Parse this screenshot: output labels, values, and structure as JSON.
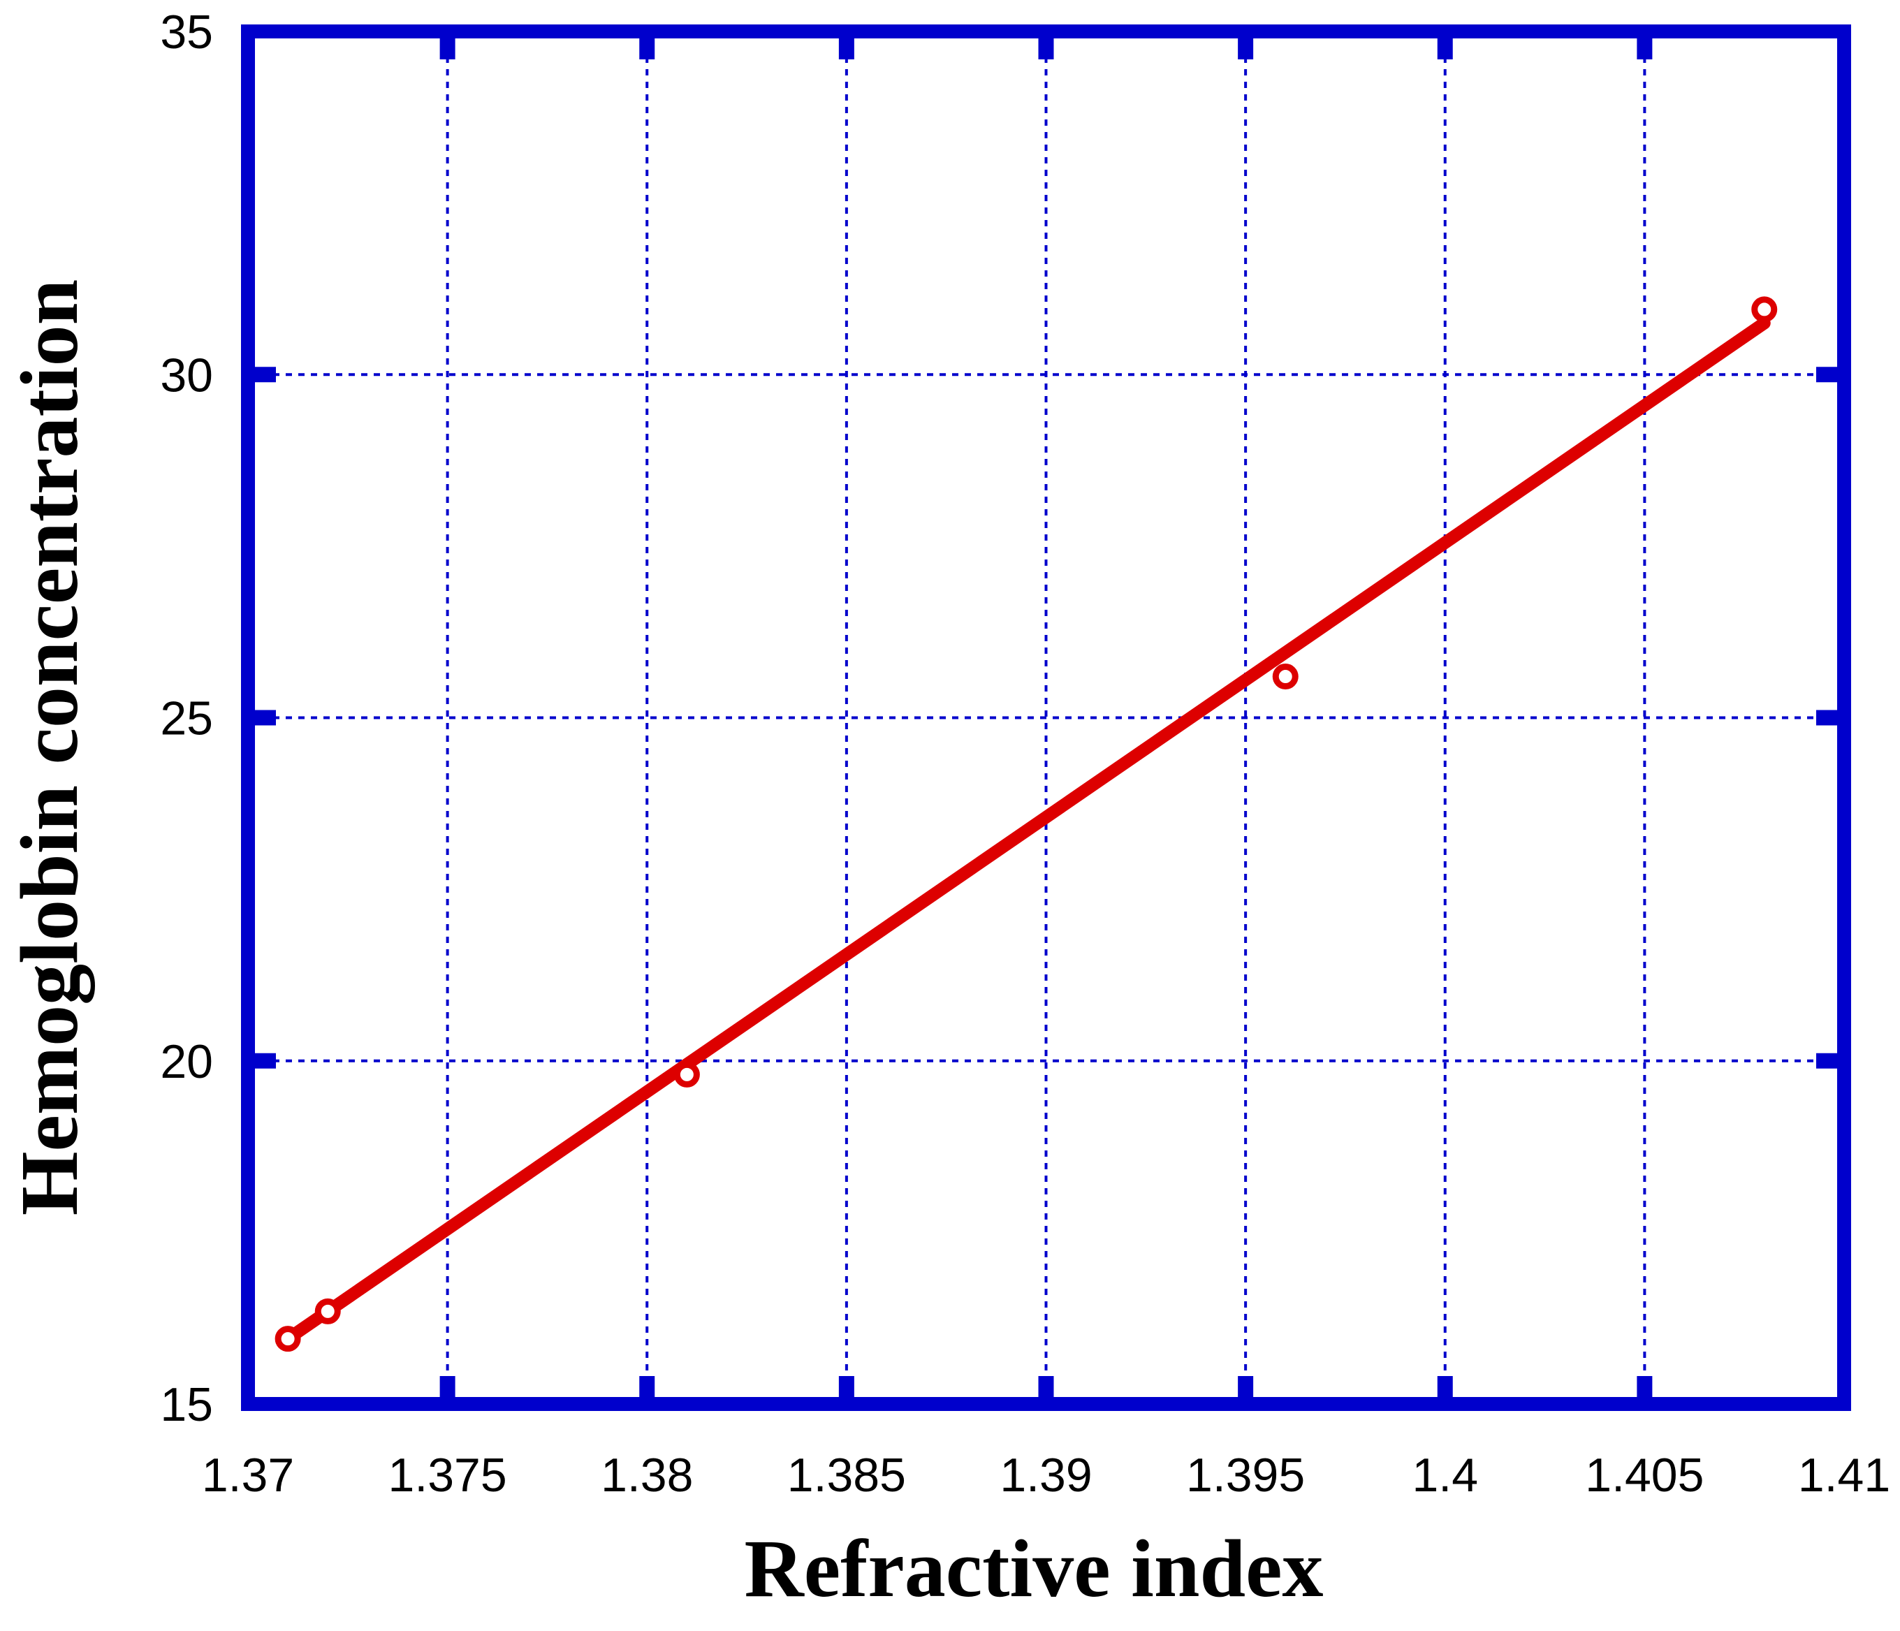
{
  "chart_data": {
    "type": "scatter",
    "title": "",
    "xlabel": "Refractive index",
    "ylabel": "Hemoglobin concentration",
    "xlim": [
      1.37,
      1.41
    ],
    "ylim": [
      15,
      35
    ],
    "x_ticks": [
      1.37,
      1.375,
      1.38,
      1.385,
      1.39,
      1.395,
      1.4,
      1.405,
      1.41
    ],
    "x_tick_labels": [
      "1.37",
      "1.375",
      "1.38",
      "1.385",
      "1.39",
      "1.395",
      "1.4",
      "1.405",
      "1.41"
    ],
    "y_ticks": [
      15,
      20,
      25,
      30,
      35
    ],
    "y_tick_labels": [
      "15",
      "20",
      "25",
      "30",
      "35"
    ],
    "grid": true,
    "legend": "none",
    "series": [
      {
        "kind": "points",
        "color": "#dd0000",
        "x": [
          1.371,
          1.372,
          1.381,
          1.396,
          1.408
        ],
        "y": [
          15.95,
          16.35,
          19.8,
          25.6,
          30.95
        ]
      },
      {
        "kind": "fit-line",
        "color": "#dd0000",
        "x": [
          1.371,
          1.408
        ],
        "y": [
          15.95,
          30.75
        ]
      }
    ],
    "colors": {
      "frame": "#0000cc",
      "grid": "#0000cc",
      "series": "#dd0000"
    }
  }
}
